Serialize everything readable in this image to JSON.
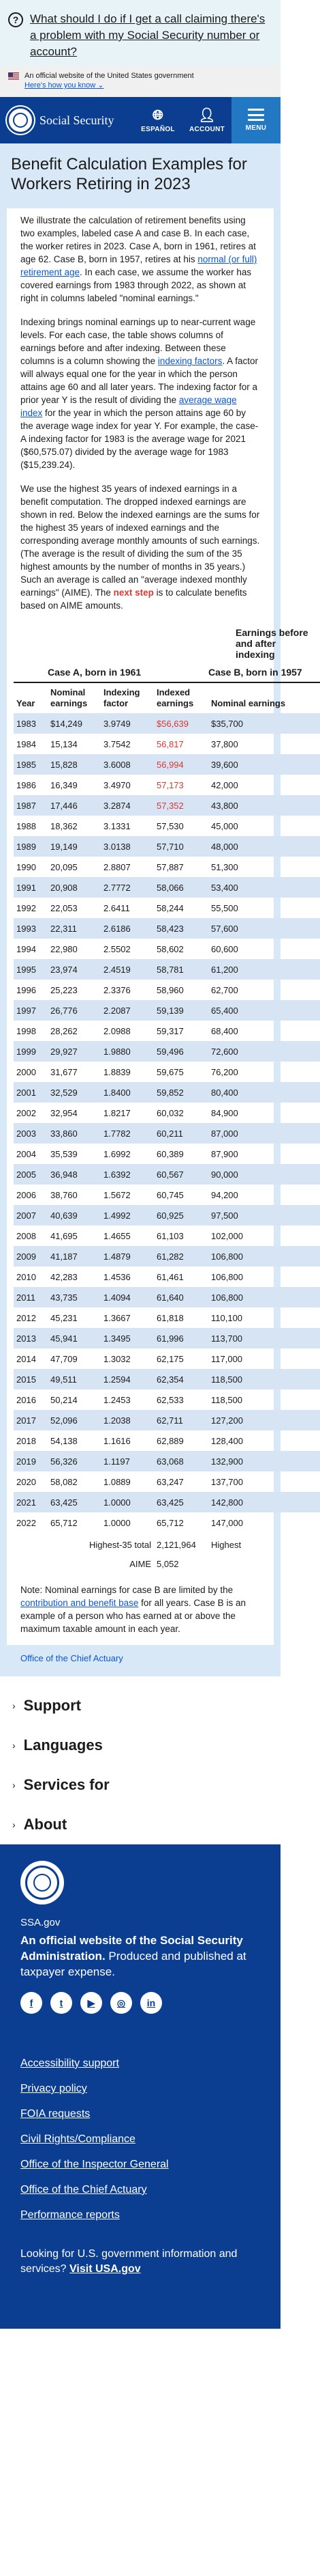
{
  "help_banner": {
    "text": "What should I do if I get a call claiming there's a problem with my Social Security number or account?"
  },
  "gov_banner": {
    "official_text": "An official website of the United States government",
    "know_link": "Here's how you know"
  },
  "header": {
    "site_name": "Social Security",
    "espanol": "ESPAÑOL",
    "account": "ACCOUNT",
    "menu": "MENU"
  },
  "page_title": "Benefit Calculation Examples for Workers Retiring in 2023",
  "intro": {
    "p1_before": "We illustrate the calculation of retirement benefits using two examples, labeled case A and case B. In each case, the worker retires in 2023. Case A, born in 1961, retires at age 62. Case B, born in 1957, retires at his ",
    "p1_link": "normal (or full) retirement age",
    "p1_after": ". In each case, we assume the worker has covered earnings from 1983 through 2022, as shown at right in columns labeled \"nominal earnings.\"",
    "p2_before": "Indexing brings nominal earnings up to near-current wage levels. For each case, the table shows columns of earnings before and after indexing. Between these columns is a column showing the ",
    "p2_link1": "indexing factors",
    "p2_mid": ". A factor will always equal one for the year in which the person attains age 60 and all later years. The indexing factor for a prior year Y is the result of dividing the ",
    "p2_link2": "average wage index",
    "p2_after": " for the year in which the person attains age 60 by the average wage index for year Y. For example, the case-A indexing factor for 1983 is the average wage for 2021 ($60,575.07) divided by the average wage for 1983 ($15,239.24).",
    "p3_before": "We use the highest 35 years of indexed earnings in a benefit computation. The dropped indexed earnings are shown in red. Below the indexed earnings are the sums for the highest 35 years of indexed earnings and the corresponding average monthly amounts of such earnings. (The average is the result of dividing the sum of the 35 highest amounts by the number of months in 35 years.) Such an average is called an \"average indexed monthly earnings\" (AIME). The ",
    "p3_link": "next step",
    "p3_after": " is to calculate benefits based on AIME amounts."
  },
  "table": {
    "group_header": "Earnings before and after indexing",
    "case_a": "Case A, born in 1961",
    "case_b": "Case B, born in 1957",
    "col_year": "Year",
    "col_nominal": "Nominal earnings",
    "col_factor": "Indexing factor",
    "col_indexed": "Indexed earnings",
    "rows": [
      {
        "year": "1983",
        "nominal": "$14,249",
        "factor": "3.9749",
        "indexed": "$56,639",
        "b": "$35,700",
        "red": true
      },
      {
        "year": "1984",
        "nominal": "15,134",
        "factor": "3.7542",
        "indexed": "56,817",
        "b": "37,800",
        "red": true
      },
      {
        "year": "1985",
        "nominal": "15,828",
        "factor": "3.6008",
        "indexed": "56,994",
        "b": "39,600",
        "red": true
      },
      {
        "year": "1986",
        "nominal": "16,349",
        "factor": "3.4970",
        "indexed": "57,173",
        "b": "42,000",
        "red": true
      },
      {
        "year": "1987",
        "nominal": "17,446",
        "factor": "3.2874",
        "indexed": "57,352",
        "b": "43,800",
        "red": true
      },
      {
        "year": "1988",
        "nominal": "18,362",
        "factor": "3.1331",
        "indexed": "57,530",
        "b": "45,000",
        "red": false
      },
      {
        "year": "1989",
        "nominal": "19,149",
        "factor": "3.0138",
        "indexed": "57,710",
        "b": "48,000",
        "red": false
      },
      {
        "year": "1990",
        "nominal": "20,095",
        "factor": "2.8807",
        "indexed": "57,887",
        "b": "51,300",
        "red": false
      },
      {
        "year": "1991",
        "nominal": "20,908",
        "factor": "2.7772",
        "indexed": "58,066",
        "b": "53,400",
        "red": false
      },
      {
        "year": "1992",
        "nominal": "22,053",
        "factor": "2.6411",
        "indexed": "58,244",
        "b": "55,500",
        "red": false
      },
      {
        "year": "1993",
        "nominal": "22,311",
        "factor": "2.6186",
        "indexed": "58,423",
        "b": "57,600",
        "red": false
      },
      {
        "year": "1994",
        "nominal": "22,980",
        "factor": "2.5502",
        "indexed": "58,602",
        "b": "60,600",
        "red": false
      },
      {
        "year": "1995",
        "nominal": "23,974",
        "factor": "2.4519",
        "indexed": "58,781",
        "b": "61,200",
        "red": false
      },
      {
        "year": "1996",
        "nominal": "25,223",
        "factor": "2.3376",
        "indexed": "58,960",
        "b": "62,700",
        "red": false
      },
      {
        "year": "1997",
        "nominal": "26,776",
        "factor": "2.2087",
        "indexed": "59,139",
        "b": "65,400",
        "red": false
      },
      {
        "year": "1998",
        "nominal": "28,262",
        "factor": "2.0988",
        "indexed": "59,317",
        "b": "68,400",
        "red": false
      },
      {
        "year": "1999",
        "nominal": "29,927",
        "factor": "1.9880",
        "indexed": "59,496",
        "b": "72,600",
        "red": false
      },
      {
        "year": "2000",
        "nominal": "31,677",
        "factor": "1.8839",
        "indexed": "59,675",
        "b": "76,200",
        "red": false
      },
      {
        "year": "2001",
        "nominal": "32,529",
        "factor": "1.8400",
        "indexed": "59,852",
        "b": "80,400",
        "red": false
      },
      {
        "year": "2002",
        "nominal": "32,954",
        "factor": "1.8217",
        "indexed": "60,032",
        "b": "84,900",
        "red": false
      },
      {
        "year": "2003",
        "nominal": "33,860",
        "factor": "1.7782",
        "indexed": "60,211",
        "b": "87,000",
        "red": false
      },
      {
        "year": "2004",
        "nominal": "35,539",
        "factor": "1.6992",
        "indexed": "60,389",
        "b": "87,900",
        "red": false
      },
      {
        "year": "2005",
        "nominal": "36,948",
        "factor": "1.6392",
        "indexed": "60,567",
        "b": "90,000",
        "red": false
      },
      {
        "year": "2006",
        "nominal": "38,760",
        "factor": "1.5672",
        "indexed": "60,745",
        "b": "94,200",
        "red": false
      },
      {
        "year": "2007",
        "nominal": "40,639",
        "factor": "1.4992",
        "indexed": "60,925",
        "b": "97,500",
        "red": false
      },
      {
        "year": "2008",
        "nominal": "41,695",
        "factor": "1.4655",
        "indexed": "61,103",
        "b": "102,000",
        "red": false
      },
      {
        "year": "2009",
        "nominal": "41,187",
        "factor": "1.4879",
        "indexed": "61,282",
        "b": "106,800",
        "red": false
      },
      {
        "year": "2010",
        "nominal": "42,283",
        "factor": "1.4536",
        "indexed": "61,461",
        "b": "106,800",
        "red": false
      },
      {
        "year": "2011",
        "nominal": "43,735",
        "factor": "1.4094",
        "indexed": "61,640",
        "b": "106,800",
        "red": false
      },
      {
        "year": "2012",
        "nominal": "45,231",
        "factor": "1.3667",
        "indexed": "61,818",
        "b": "110,100",
        "red": false
      },
      {
        "year": "2013",
        "nominal": "45,941",
        "factor": "1.3495",
        "indexed": "61,996",
        "b": "113,700",
        "red": false
      },
      {
        "year": "2014",
        "nominal": "47,709",
        "factor": "1.3032",
        "indexed": "62,175",
        "b": "117,000",
        "red": false
      },
      {
        "year": "2015",
        "nominal": "49,511",
        "factor": "1.2594",
        "indexed": "62,354",
        "b": "118,500",
        "red": false
      },
      {
        "year": "2016",
        "nominal": "50,214",
        "factor": "1.2453",
        "indexed": "62,533",
        "b": "118,500",
        "red": false
      },
      {
        "year": "2017",
        "nominal": "52,096",
        "factor": "1.2038",
        "indexed": "62,711",
        "b": "127,200",
        "red": false
      },
      {
        "year": "2018",
        "nominal": "54,138",
        "factor": "1.1616",
        "indexed": "62,889",
        "b": "128,400",
        "red": false
      },
      {
        "year": "2019",
        "nominal": "56,326",
        "factor": "1.1197",
        "indexed": "63,068",
        "b": "132,900",
        "red": false
      },
      {
        "year": "2020",
        "nominal": "58,082",
        "factor": "1.0889",
        "indexed": "63,247",
        "b": "137,700",
        "red": false
      },
      {
        "year": "2021",
        "nominal": "63,425",
        "factor": "1.0000",
        "indexed": "63,425",
        "b": "142,800",
        "red": false
      },
      {
        "year": "2022",
        "nominal": "65,712",
        "factor": "1.0000",
        "indexed": "65,712",
        "b": "147,000",
        "red": false
      }
    ],
    "highest_label": "Highest-35 total",
    "highest_value": "2,121,964",
    "highest_b_label": "Highest",
    "aime_label": "AIME",
    "aime_value": "5,052"
  },
  "note": {
    "before": "Note: Nominal earnings for case B are limited by the ",
    "link": "contribution and benefit base",
    "after": " for all years. Case B is an example of a person who has earned at or above the maximum taxable amount in each year."
  },
  "office": "Office of the Chief Actuary",
  "accordions": [
    "Support",
    "Languages",
    "Services for",
    "About"
  ],
  "footer": {
    "domain": "SSA.gov",
    "official_bold": "An official website of the Social Security Administration.",
    "official_rest": " Produced and published at taxpayer expense.",
    "social": [
      "f",
      "t",
      "▶",
      "◎",
      "in"
    ],
    "links": [
      "Accessibility support",
      "Privacy policy",
      "FOIA requests",
      "Civil Rights/Compliance",
      "Office of the Inspector General",
      "Office of the Chief Actuary",
      "Performance reports"
    ],
    "visit_before": "Looking for U.S. government information and services? ",
    "visit_link": "Visit USA.gov"
  }
}
